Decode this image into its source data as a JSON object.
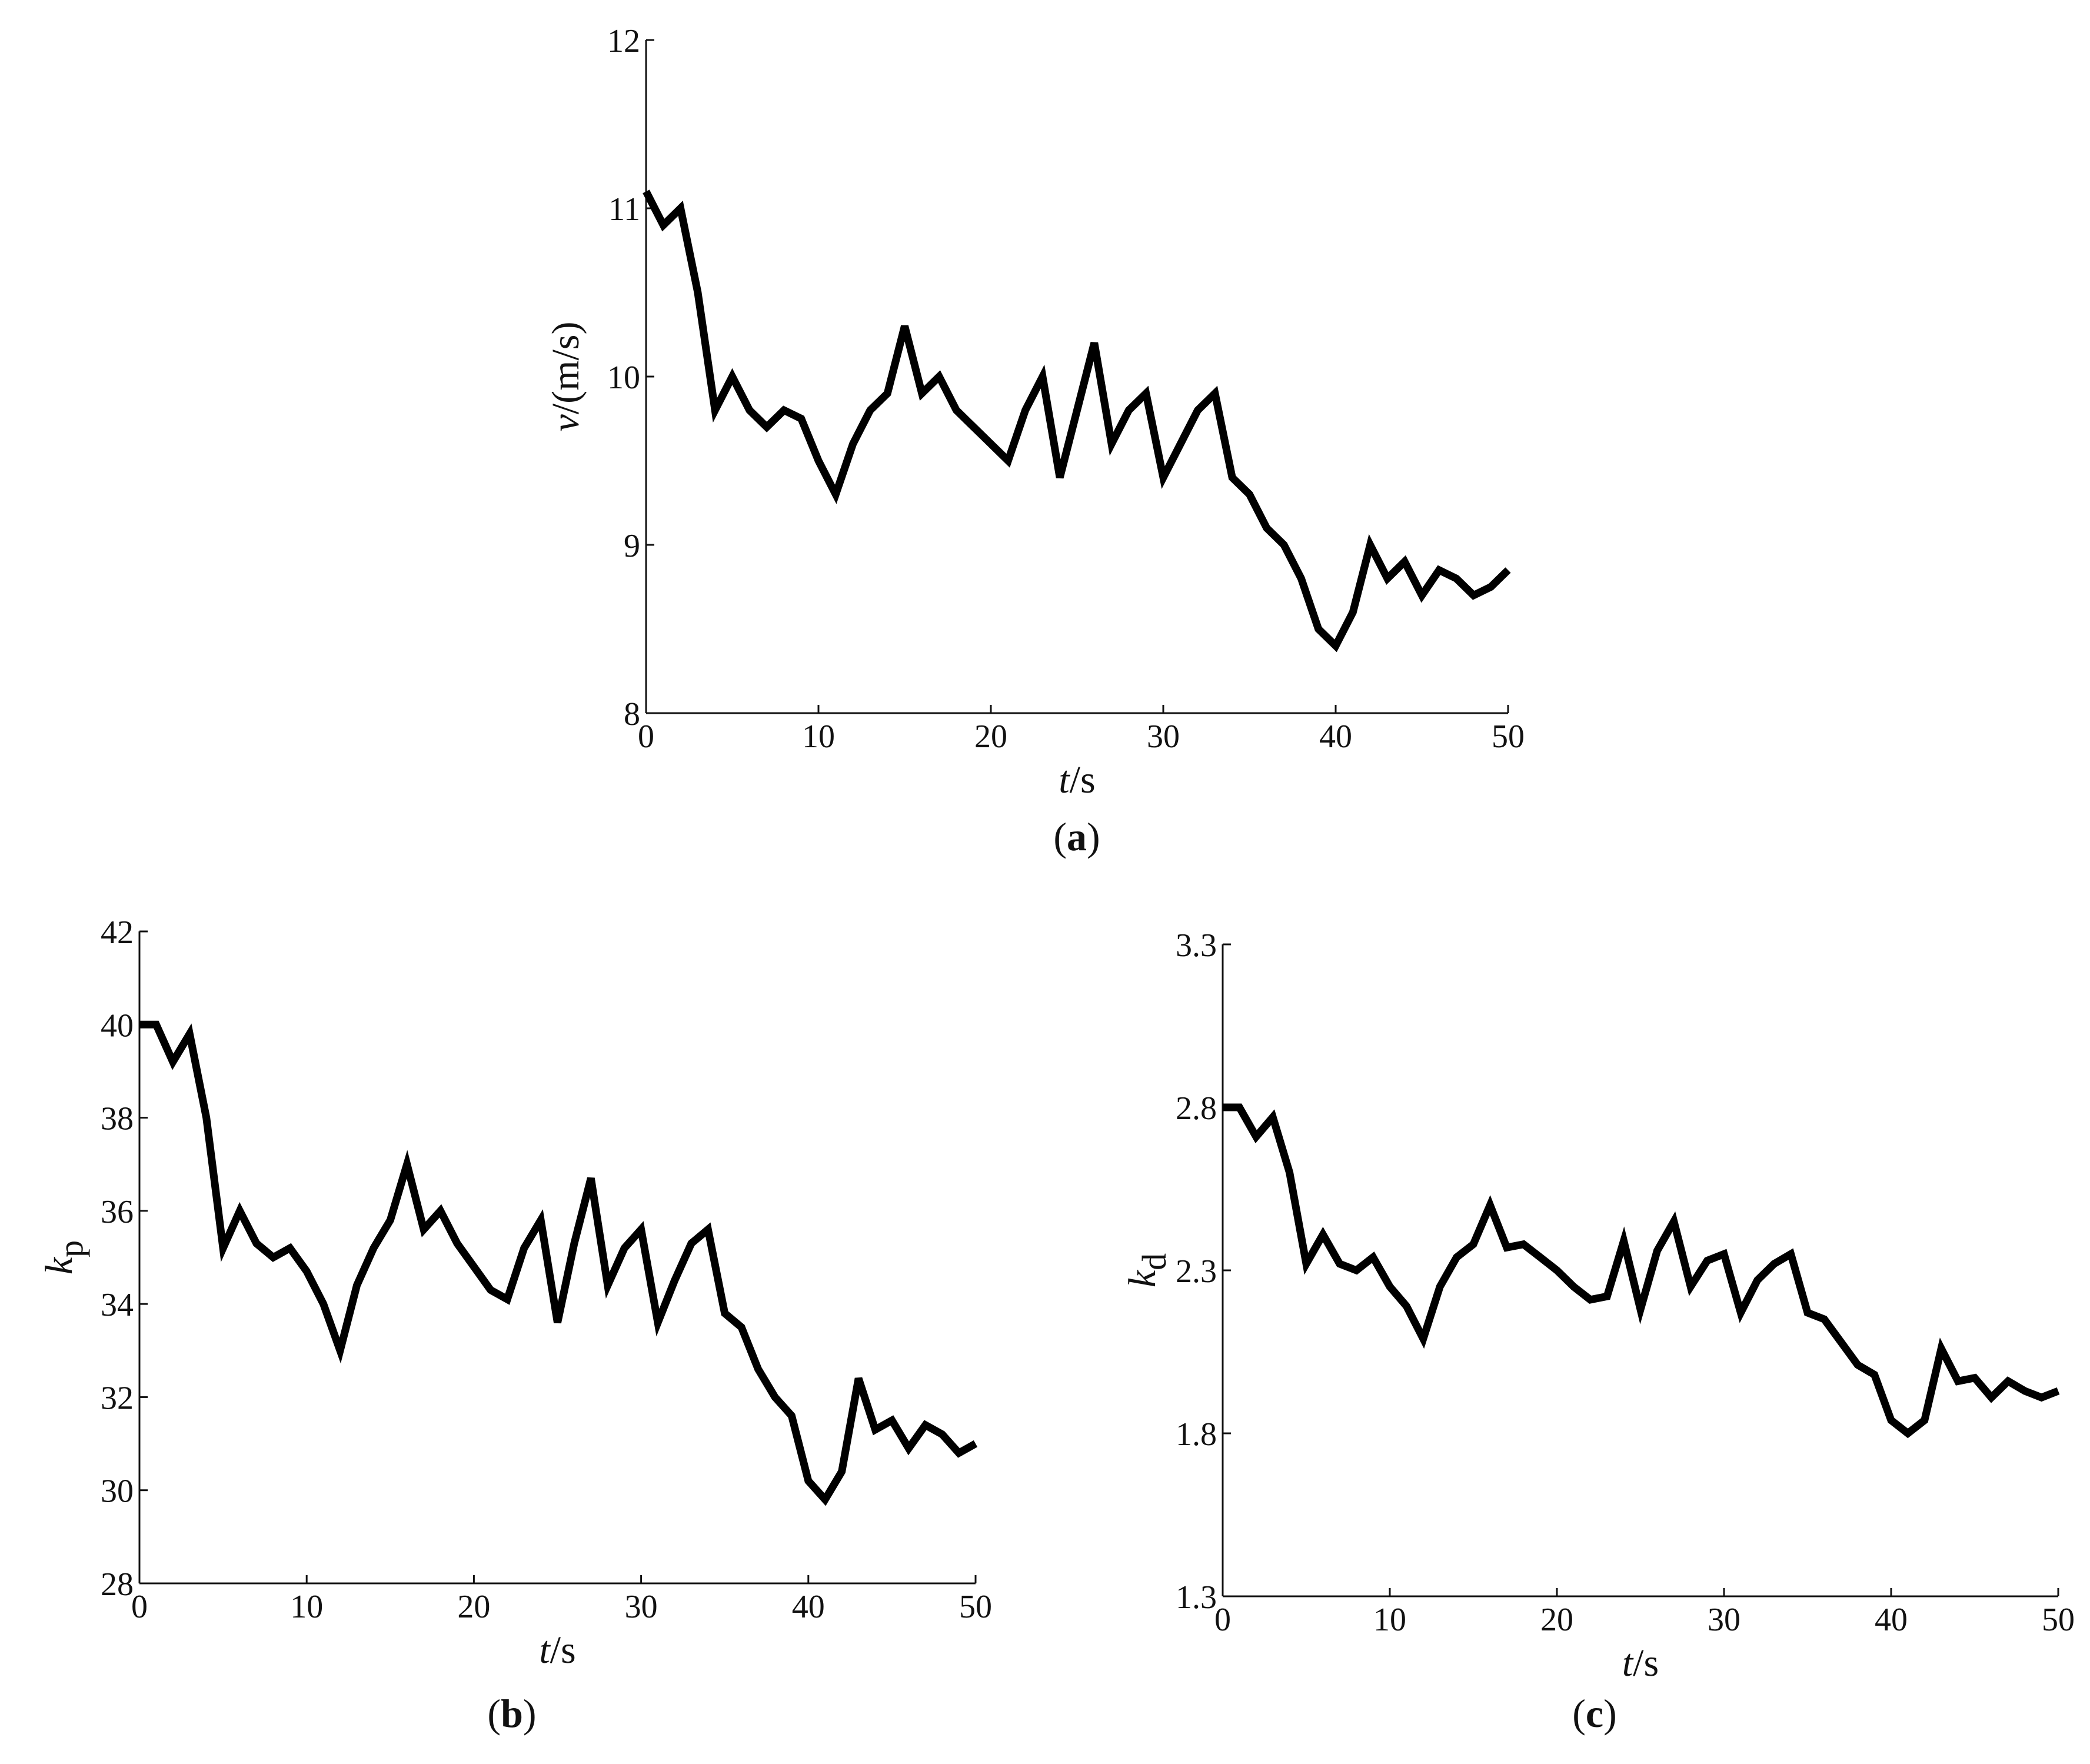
{
  "chart_data": [
    {
      "type": "line",
      "panel_label": "a",
      "xlabel": {
        "var": "t",
        "unit": "/s"
      },
      "ylabel": {
        "var": "v",
        "unit": "/(m/s)"
      },
      "xlim": [
        0,
        50
      ],
      "ylim": [
        8,
        12
      ],
      "xticks": [
        0,
        10,
        20,
        30,
        40,
        50
      ],
      "yticks": [
        8,
        9,
        10,
        11,
        12
      ],
      "grid": false,
      "x": [
        0,
        1,
        2,
        3,
        4,
        5,
        6,
        7,
        8,
        9,
        10,
        11,
        12,
        13,
        14,
        15,
        16,
        17,
        18,
        19,
        20,
        21,
        22,
        23,
        24,
        25,
        26,
        27,
        28,
        29,
        30,
        31,
        32,
        33,
        34,
        35,
        36,
        37,
        38,
        39,
        40,
        41,
        42,
        43,
        44,
        45,
        46,
        47,
        48,
        49,
        50
      ],
      "series": [
        {
          "values": [
            11.1,
            10.9,
            11.0,
            10.5,
            9.8,
            10.0,
            9.8,
            9.7,
            9.8,
            9.75,
            9.5,
            9.3,
            9.6,
            9.8,
            9.9,
            10.3,
            9.9,
            10.0,
            9.8,
            9.7,
            9.6,
            9.5,
            9.8,
            10.0,
            9.4,
            9.8,
            10.2,
            9.6,
            9.8,
            9.9,
            9.4,
            9.6,
            9.8,
            9.9,
            9.4,
            9.3,
            9.1,
            9.0,
            8.8,
            8.5,
            8.4,
            8.6,
            9.0,
            8.8,
            8.9,
            8.7,
            8.85,
            8.8,
            8.7,
            8.75,
            8.85
          ]
        }
      ]
    },
    {
      "type": "line",
      "panel_label": "b",
      "xlabel": {
        "var": "t",
        "unit": "/s"
      },
      "ylabel": {
        "var": "k",
        "sub": "p"
      },
      "xlim": [
        0,
        50
      ],
      "ylim": [
        28,
        42
      ],
      "xticks": [
        0,
        10,
        20,
        30,
        40,
        50
      ],
      "yticks": [
        28,
        30,
        32,
        34,
        36,
        38,
        40,
        42
      ],
      "grid": false,
      "x": [
        0,
        1,
        2,
        3,
        4,
        5,
        6,
        7,
        8,
        9,
        10,
        11,
        12,
        13,
        14,
        15,
        16,
        17,
        18,
        19,
        20,
        21,
        22,
        23,
        24,
        25,
        26,
        27,
        28,
        29,
        30,
        31,
        32,
        33,
        34,
        35,
        36,
        37,
        38,
        39,
        40,
        41,
        42,
        43,
        44,
        45,
        46,
        47,
        48,
        49,
        50
      ],
      "series": [
        {
          "values": [
            40.0,
            40.0,
            39.2,
            39.8,
            38.0,
            35.2,
            36.0,
            35.3,
            35.0,
            35.2,
            34.7,
            34.0,
            33.0,
            34.4,
            35.2,
            35.8,
            37.0,
            35.6,
            36.0,
            35.3,
            34.8,
            34.3,
            34.1,
            35.2,
            35.8,
            33.6,
            35.3,
            36.7,
            34.4,
            35.2,
            35.6,
            33.6,
            34.5,
            35.3,
            35.6,
            33.8,
            33.5,
            32.6,
            32.0,
            31.6,
            30.2,
            29.8,
            30.4,
            32.4,
            31.3,
            31.5,
            30.9,
            31.4,
            31.2,
            30.8,
            31.0
          ]
        }
      ]
    },
    {
      "type": "line",
      "panel_label": "c",
      "xlabel": {
        "var": "t",
        "unit": "/s"
      },
      "ylabel": {
        "var": "k",
        "sub": "d"
      },
      "xlim": [
        0,
        50
      ],
      "ylim": [
        1.3,
        3.3
      ],
      "xticks": [
        0,
        10,
        20,
        30,
        40,
        50
      ],
      "yticks": [
        1.3,
        1.8,
        2.3,
        2.8,
        3.3
      ],
      "ytick_labels": [
        "1.3",
        "1.8",
        "2.3",
        "2.8",
        "3.3"
      ],
      "grid": false,
      "x": [
        0,
        1,
        2,
        3,
        4,
        5,
        6,
        7,
        8,
        9,
        10,
        11,
        12,
        13,
        14,
        15,
        16,
        17,
        18,
        19,
        20,
        21,
        22,
        23,
        24,
        25,
        26,
        27,
        28,
        29,
        30,
        31,
        32,
        33,
        34,
        35,
        36,
        37,
        38,
        39,
        40,
        41,
        42,
        43,
        44,
        45,
        46,
        47,
        48,
        49,
        50
      ],
      "series": [
        {
          "values": [
            2.8,
            2.8,
            2.71,
            2.77,
            2.6,
            2.32,
            2.41,
            2.32,
            2.3,
            2.34,
            2.25,
            2.19,
            2.09,
            2.25,
            2.34,
            2.38,
            2.5,
            2.37,
            2.38,
            2.34,
            2.3,
            2.25,
            2.21,
            2.22,
            2.39,
            2.18,
            2.36,
            2.45,
            2.25,
            2.33,
            2.35,
            2.17,
            2.27,
            2.32,
            2.35,
            2.17,
            2.15,
            2.08,
            2.01,
            1.98,
            1.84,
            1.8,
            1.84,
            2.06,
            1.96,
            1.97,
            1.91,
            1.96,
            1.93,
            1.91,
            1.93
          ]
        }
      ]
    }
  ]
}
